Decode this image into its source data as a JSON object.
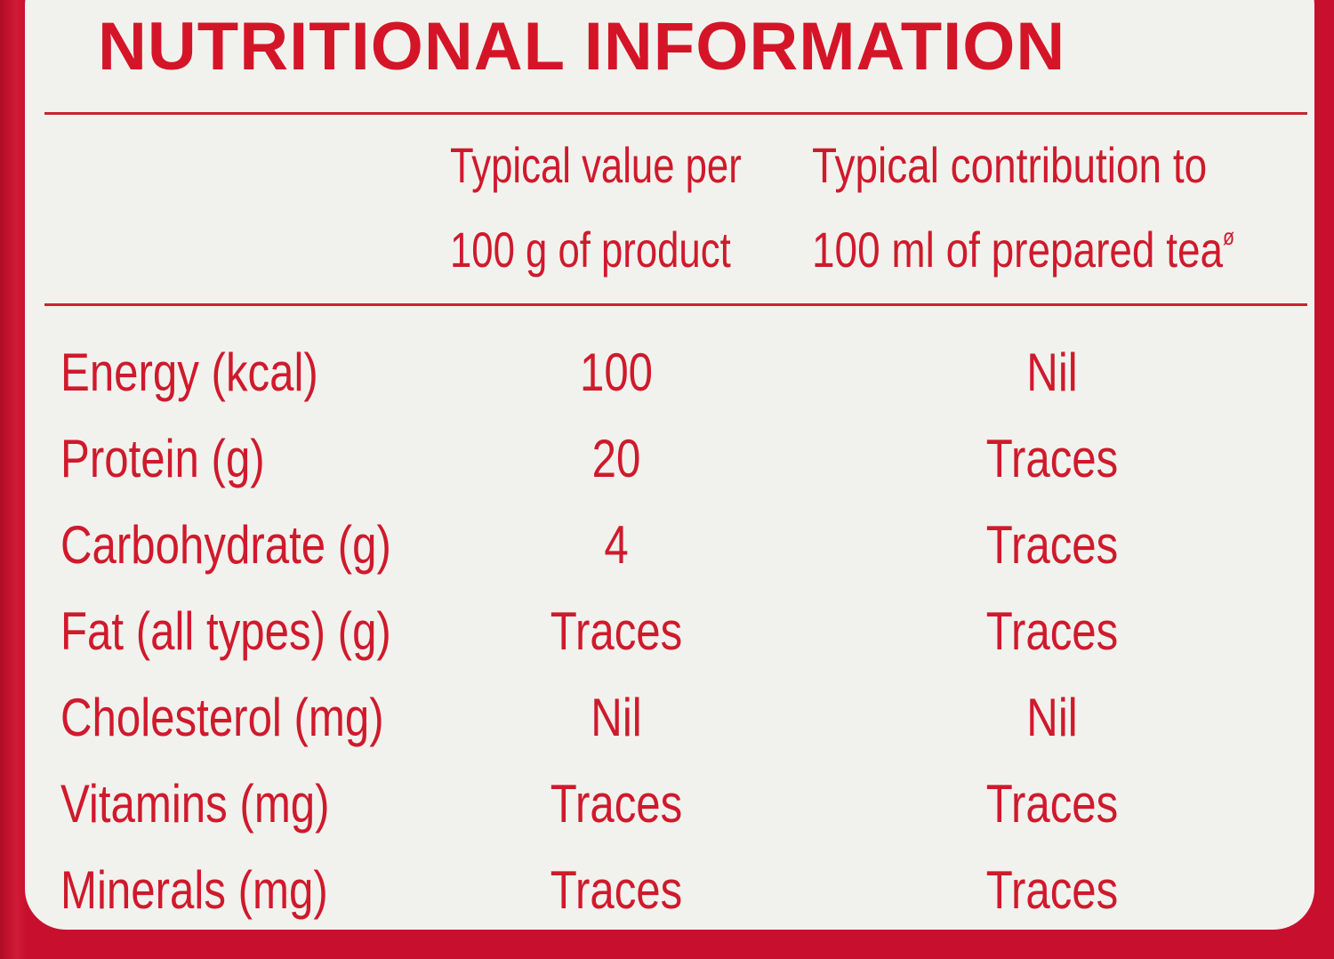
{
  "title": "NUTRITIONAL INFORMATION",
  "columns": {
    "per_100g_line1": "Typical value per",
    "per_100g_line2": "100 g of product",
    "per_100ml_line1": "Typical contribution to",
    "per_100ml_line2": "100 ml of prepared tea",
    "per_100ml_mark": "ø"
  },
  "rows": [
    {
      "nutrient": "Energy (kcal)",
      "per_100g": "100",
      "per_100ml": "Nil"
    },
    {
      "nutrient": "Protein (g)",
      "per_100g": "20",
      "per_100ml": "Traces"
    },
    {
      "nutrient": "Carbohydrate (g)",
      "per_100g": "4",
      "per_100ml": "Traces"
    },
    {
      "nutrient": "Fat (all types) (g)",
      "per_100g": "Traces",
      "per_100ml": "Traces"
    },
    {
      "nutrient": "Cholesterol (mg)",
      "per_100g": "Nil",
      "per_100ml": "Nil"
    },
    {
      "nutrient": "Vitamins (mg)",
      "per_100g": "Traces",
      "per_100ml": "Traces"
    },
    {
      "nutrient": "Minerals (mg)",
      "per_100g": "Traces",
      "per_100ml": "Traces"
    }
  ],
  "colors": {
    "text": "#cf1a2c",
    "panel": "#f1f2ee",
    "frame": "#c8102e"
  }
}
